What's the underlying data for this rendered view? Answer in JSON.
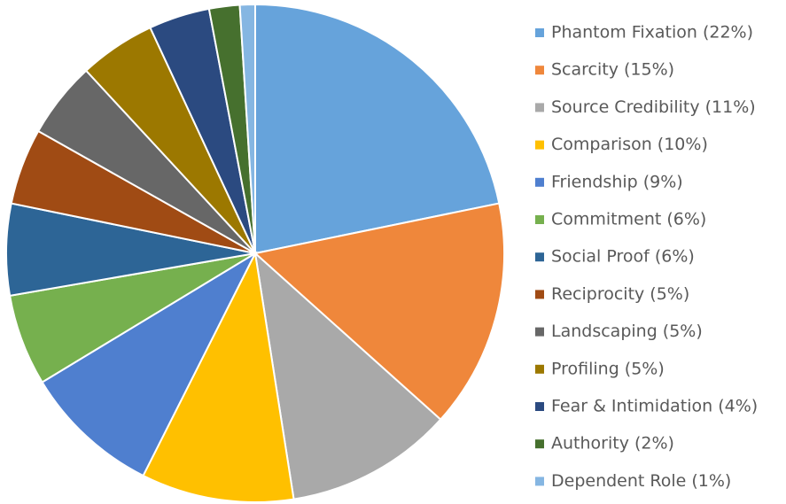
{
  "chart_data": {
    "type": "pie",
    "categories": [
      "Phantom Fixation (22%)",
      "Scarcity (15%)",
      "Source Credibility (11%)",
      "Comparison (10%)",
      "Friendship (9%)",
      "Commitment (6%)",
      "Social Proof (6%)",
      "Reciprocity (5%)",
      "Landscaping (5%)",
      "Profiling (5%)",
      "Fear & Intimidation (4%)",
      "Authority (2%)",
      "Dependent Role (1%)"
    ],
    "values": [
      22,
      15,
      11,
      10,
      9,
      6,
      6,
      5,
      5,
      5,
      4,
      2,
      1
    ],
    "colors": [
      "#66a3db",
      "#ef873b",
      "#a9a9a9",
      "#ffc000",
      "#4f7fcf",
      "#76b04e",
      "#2d6596",
      "#a04b14",
      "#676767",
      "#9c7800",
      "#2b4a80",
      "#46702e",
      "#85b6e2"
    ],
    "legend": "right"
  }
}
